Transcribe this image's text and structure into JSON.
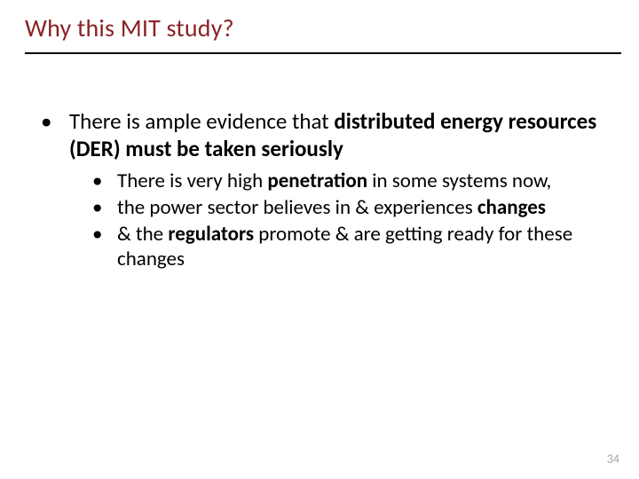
{
  "title": {
    "color": "#8a2327",
    "text": "Why this MIT study?"
  },
  "bullets": {
    "level1": [
      {
        "runs": [
          {
            "t": "There is ample evidence that ",
            "bold": false
          },
          {
            "t": "distributed energy resources (DER) must be taken seriously",
            "bold": true
          }
        ]
      }
    ],
    "level2": [
      {
        "runs": [
          {
            "t": "There is very high ",
            "bold": false
          },
          {
            "t": "penetration",
            "bold": true
          },
          {
            "t": " in some systems now,",
            "bold": false
          }
        ]
      },
      {
        "runs": [
          {
            "t": "the power sector believes in & experiences ",
            "bold": false
          },
          {
            "t": "changes",
            "bold": true
          }
        ]
      },
      {
        "runs": [
          {
            "t": "& the ",
            "bold": false
          },
          {
            "t": "regulators",
            "bold": true
          },
          {
            "t": " promote & are getting ready for these changes",
            "bold": false
          }
        ]
      }
    ]
  },
  "page_number": {
    "value": "34",
    "color": "#a6a6a6"
  },
  "bullet_char": "•"
}
